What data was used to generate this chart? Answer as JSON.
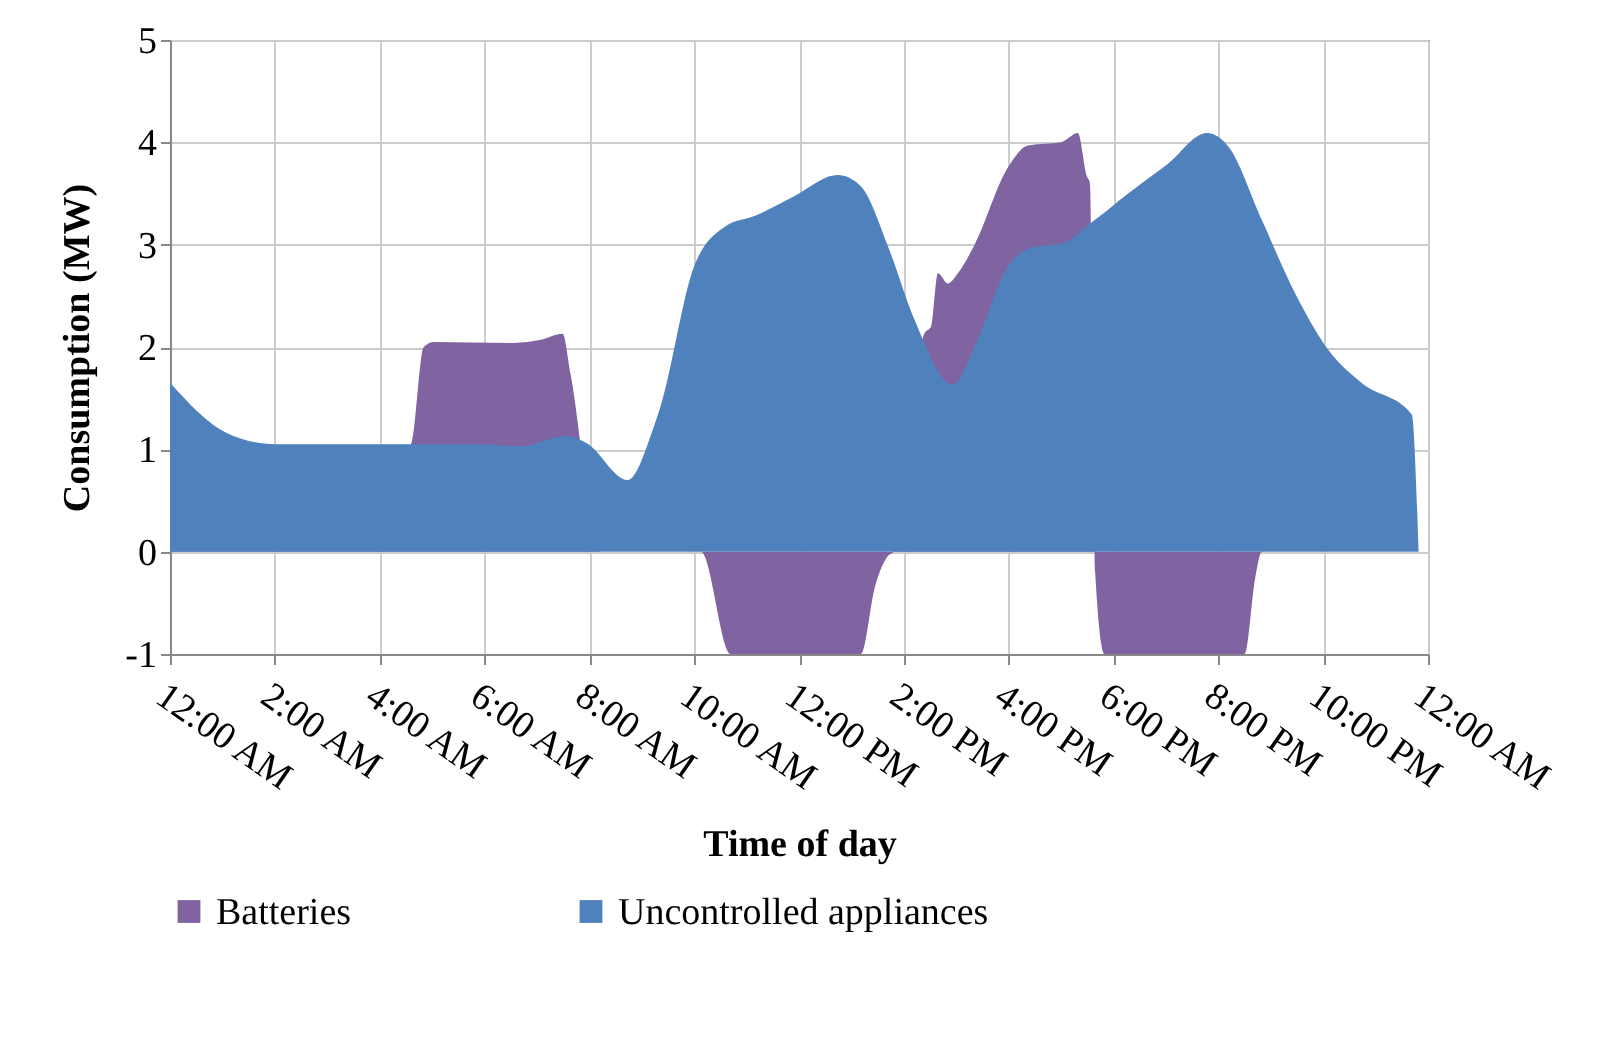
{
  "chart_data": {
    "type": "area",
    "xlabel": "Time of day",
    "ylabel": "Consumption (MW)",
    "xlim": [
      0,
      24
    ],
    "ylim": [
      -1,
      5
    ],
    "yticks": [
      -1,
      0,
      1,
      2,
      3,
      4,
      5
    ],
    "xticks": [
      {
        "value": 0,
        "label": "12:00 AM"
      },
      {
        "value": 2,
        "label": "2:00 AM"
      },
      {
        "value": 4,
        "label": "4:00 AM"
      },
      {
        "value": 6,
        "label": "6:00 AM"
      },
      {
        "value": 8,
        "label": "8:00 AM"
      },
      {
        "value": 10,
        "label": "10:00 AM"
      },
      {
        "value": 12,
        "label": "12:00 PM"
      },
      {
        "value": 14,
        "label": "2:00 PM"
      },
      {
        "value": 16,
        "label": "4:00 PM"
      },
      {
        "value": 18,
        "label": "6:00 PM"
      },
      {
        "value": 20,
        "label": "8:00 PM"
      },
      {
        "value": 22,
        "label": "10:00 PM"
      },
      {
        "value": 24,
        "label": "12:00 AM"
      }
    ],
    "grid": true,
    "legend": "bottom",
    "series": [
      {
        "name": "Batteries",
        "color": "#8064a2",
        "x": [
          0,
          4.6,
          4.84,
          5.03,
          6.56,
          7.07,
          7.49,
          7.64,
          8.2,
          9.5,
          10.13,
          10.7,
          13.18,
          13.45,
          13.7,
          13.8,
          14.39,
          14.52,
          14.65,
          14.84,
          15.03,
          15.35,
          15.99,
          16.37,
          17.0,
          17.32,
          17.49,
          17.55,
          17.65,
          17.83,
          20.5,
          20.7,
          20.83,
          24
        ],
        "values": [
          0,
          1.05,
          2.0,
          2.05,
          2.04,
          2.07,
          2.13,
          1.74,
          0,
          0,
          0,
          -1,
          -1,
          -0.34,
          -0.04,
          0,
          2.13,
          2.2,
          2.72,
          2.62,
          2.72,
          3.0,
          3.76,
          3.97,
          4.0,
          4.09,
          3.67,
          3.6,
          -0.2,
          -1,
          -1,
          -0.27,
          0,
          0
        ]
      },
      {
        "name": "Uncontrolled appliances",
        "color": "#4f81bd",
        "x": [
          0,
          1.08,
          2,
          4,
          5.9,
          6.7,
          7.55,
          7.95,
          8.73,
          9.23,
          9.36,
          10.0,
          10.6,
          11.15,
          11.9,
          12.74,
          13.18,
          13.7,
          14.2,
          14.93,
          15.35,
          15.99,
          16.5,
          17.0,
          17.64,
          18.28,
          19.04,
          19.78,
          20.19,
          20.83,
          21.46,
          22.1,
          22.73,
          23.69,
          23.82
        ],
        "values": [
          1.65,
          1.16,
          1.05,
          1.05,
          1.05,
          1.03,
          1.13,
          1.06,
          0.7,
          1.22,
          1.42,
          2.79,
          3.18,
          3.28,
          3.47,
          3.68,
          3.57,
          2.98,
          2.27,
          1.63,
          2.0,
          2.79,
          2.98,
          3.01,
          3.24,
          3.5,
          3.79,
          4.09,
          3.96,
          3.24,
          2.53,
          1.97,
          1.65,
          1.34,
          0
        ]
      }
    ]
  }
}
